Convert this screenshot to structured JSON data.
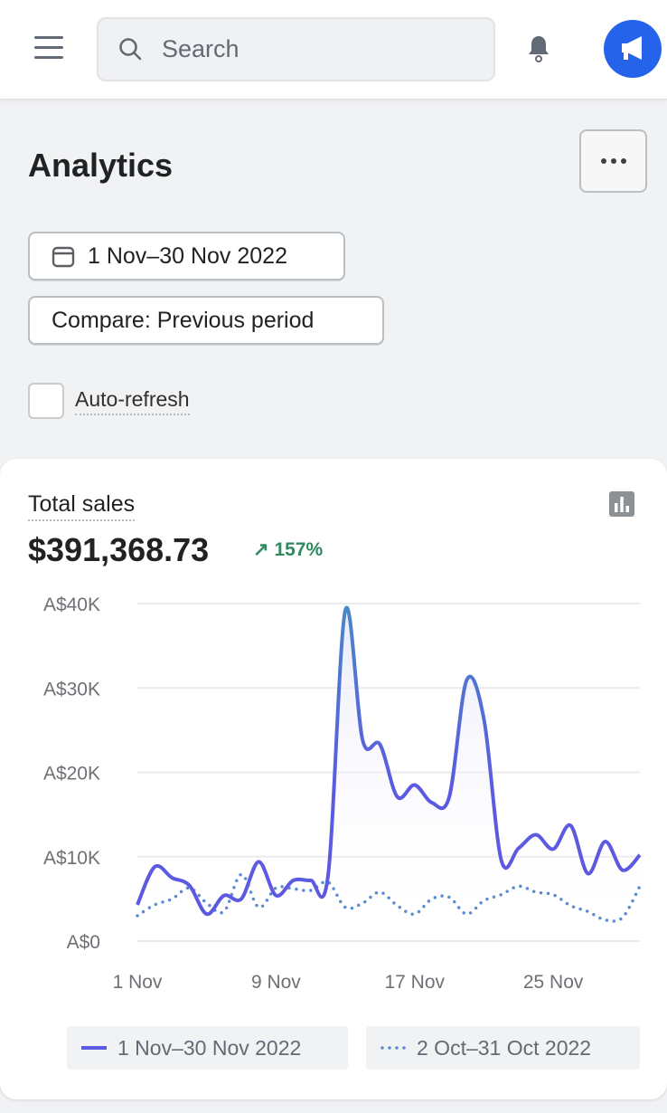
{
  "header": {
    "search_placeholder": "Search"
  },
  "page": {
    "title": "Analytics",
    "date_range": "1 Nov–30 Nov 2022",
    "compare": "Compare: Previous period",
    "auto_refresh": "Auto-refresh",
    "auto_refresh_checked": false
  },
  "card": {
    "title": "Total sales",
    "value": "$391,368.73",
    "change": "157%",
    "change_color": "#2e8a5e"
  },
  "chart_data": {
    "type": "line",
    "title": "Total sales",
    "x_labels": [
      "1 Nov",
      "9 Nov",
      "17 Nov",
      "25 Nov"
    ],
    "y_ticks": [
      "A$0",
      "A$10K",
      "A$20K",
      "A$30K",
      "A$40K"
    ],
    "ylim": [
      0,
      40000
    ],
    "grid": true,
    "legend_position": "bottom",
    "series": [
      {
        "name": "1 Nov–30 Nov 2022",
        "style": "solid",
        "color": "#5c5ae0",
        "values": [
          4300,
          8800,
          7500,
          6600,
          3200,
          5400,
          5000,
          9400,
          5400,
          7200,
          7200,
          7700,
          39200,
          23800,
          23300,
          17100,
          18500,
          16400,
          17100,
          30900,
          26300,
          9600,
          11000,
          12600,
          10900,
          13700,
          8000,
          11800,
          8400,
          10200
        ]
      },
      {
        "name": "2 Oct–31 Oct 2022",
        "style": "dotted",
        "color": "#5b8cd1",
        "values": [
          3000,
          4300,
          5000,
          6300,
          4500,
          3500,
          7900,
          4000,
          6300,
          6200,
          6000,
          7000,
          4000,
          4500,
          5800,
          4200,
          3200,
          5000,
          5200,
          3200,
          4800,
          5500,
          6500,
          5800,
          5500,
          4200,
          3500,
          2500,
          2800,
          6500
        ]
      }
    ]
  }
}
